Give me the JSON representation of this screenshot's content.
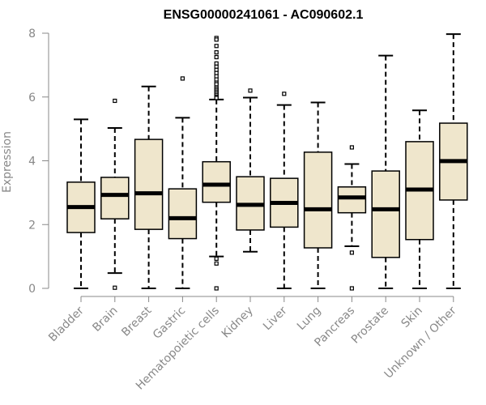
{
  "chart_data": {
    "type": "boxplot",
    "title": "ENSG00000241061 - AC090602.1",
    "xlabel": "",
    "ylabel": "Expression",
    "ylim": [
      0,
      8
    ],
    "yticks": [
      0,
      2,
      4,
      6,
      8
    ],
    "box_fill": "#EFE6CC",
    "box_stroke": "#000000",
    "axis_color": "#888888",
    "categories": [
      "Bladder",
      "Brain",
      "Breast",
      "Gastric",
      "Hematopoietic cells",
      "Kidney",
      "Liver",
      "Lung",
      "Pancreas",
      "Prostate",
      "Skin",
      "Unknown / Other"
    ],
    "boxes": [
      {
        "name": "Bladder",
        "min": 0.0,
        "q1": 1.75,
        "median": 2.55,
        "q3": 3.33,
        "max": 5.3,
        "outliers": []
      },
      {
        "name": "Brain",
        "min": 0.48,
        "q1": 2.18,
        "median": 2.93,
        "q3": 3.48,
        "max": 5.03,
        "outliers": [
          5.88,
          0.02
        ]
      },
      {
        "name": "Breast",
        "min": 0.0,
        "q1": 1.85,
        "median": 2.98,
        "q3": 4.67,
        "max": 6.33,
        "outliers": []
      },
      {
        "name": "Gastric",
        "min": 0.0,
        "q1": 1.56,
        "median": 2.2,
        "q3": 3.12,
        "max": 5.35,
        "outliers": [
          6.58
        ]
      },
      {
        "name": "Hematopoietic cells",
        "min": 1.0,
        "q1": 2.7,
        "median": 3.25,
        "q3": 3.97,
        "max": 5.92,
        "outliers": [
          7.85,
          7.8,
          7.6,
          7.4,
          7.25,
          7.05,
          6.95,
          6.85,
          6.75,
          6.65,
          6.55,
          6.45,
          6.4,
          6.3,
          6.25,
          6.2,
          6.15,
          6.1,
          6.05,
          6.0,
          5.97,
          0.93,
          0.78,
          0.0
        ]
      },
      {
        "name": "Kidney",
        "min": 1.15,
        "q1": 1.83,
        "median": 2.62,
        "q3": 3.5,
        "max": 5.98,
        "outliers": [
          6.2
        ]
      },
      {
        "name": "Liver",
        "min": 0.0,
        "q1": 1.92,
        "median": 2.68,
        "q3": 3.45,
        "max": 5.75,
        "outliers": [
          6.1
        ]
      },
      {
        "name": "Lung",
        "min": 0.0,
        "q1": 1.27,
        "median": 2.48,
        "q3": 4.27,
        "max": 5.83,
        "outliers": []
      },
      {
        "name": "Pancreas",
        "min": 1.32,
        "q1": 2.37,
        "median": 2.85,
        "q3": 3.18,
        "max": 3.9,
        "outliers": [
          4.42,
          1.12,
          0.0
        ]
      },
      {
        "name": "Prostate",
        "min": 0.0,
        "q1": 0.97,
        "median": 2.48,
        "q3": 3.68,
        "max": 7.3,
        "outliers": []
      },
      {
        "name": "Skin",
        "min": 0.0,
        "q1": 1.53,
        "median": 3.1,
        "q3": 4.6,
        "max": 5.58,
        "outliers": []
      },
      {
        "name": "Unknown / Other",
        "min": 0.0,
        "q1": 2.77,
        "median": 3.99,
        "q3": 5.18,
        "max": 7.97,
        "outliers": []
      }
    ]
  }
}
